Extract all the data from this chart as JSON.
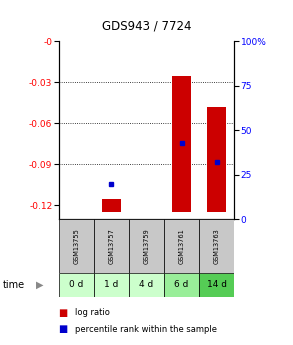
{
  "title": "GDS943 / 7724",
  "samples": [
    "GSM13755",
    "GSM13757",
    "GSM13759",
    "GSM13761",
    "GSM13763"
  ],
  "time_labels": [
    "0 d",
    "1 d",
    "4 d",
    "6 d",
    "14 d"
  ],
  "time_colors": [
    "#ccffcc",
    "#ccffcc",
    "#ccffcc",
    "#99ee99",
    "#55cc55"
  ],
  "ylim_left": [
    0.0,
    -0.13
  ],
  "ymin": -0.13,
  "ymax": 0.0,
  "ylim_right": [
    0,
    100
  ],
  "yticks_left": [
    0,
    -0.03,
    -0.06,
    -0.09,
    -0.12
  ],
  "yticks_right": [
    100,
    75,
    50,
    25,
    0
  ],
  "log_ratio": [
    null,
    -0.115,
    null,
    -0.025,
    -0.048
  ],
  "bar_base": -0.125,
  "percentile_rank": [
    null,
    20,
    null,
    43,
    32
  ],
  "grid_lines": [
    -0.03,
    -0.06,
    -0.09
  ],
  "bar_color": "#cc0000",
  "dot_color": "#0000cc",
  "bar_width": 0.55,
  "gsm_bg": "#c8c8c8",
  "border_color": "#000000"
}
